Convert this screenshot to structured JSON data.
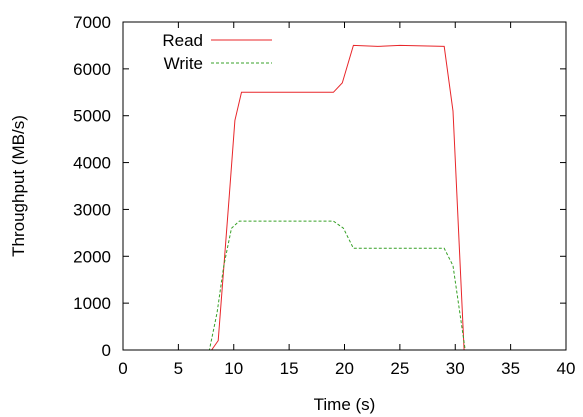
{
  "chart_data": {
    "type": "line",
    "title": "",
    "xlabel": "Time (s)",
    "ylabel": "Throughput (MB/s)",
    "xlim": [
      0,
      40
    ],
    "ylim": [
      0,
      7000
    ],
    "xticks": [
      0,
      5,
      10,
      15,
      20,
      25,
      30,
      35,
      40
    ],
    "yticks": [
      0,
      1000,
      2000,
      3000,
      4000,
      5000,
      6000,
      7000
    ],
    "grid": false,
    "legend_position": "top-left",
    "series": [
      {
        "name": "Read",
        "color": "#e8262a",
        "dash": "solid",
        "x": [
          0,
          8,
          8.6,
          9.6,
          10.1,
          10.7,
          15,
          19,
          19.8,
          20.8,
          23,
          25,
          29,
          29.8,
          30.8,
          31,
          40
        ],
        "y": [
          0,
          0,
          200,
          3300,
          4900,
          5500,
          5500,
          5500,
          5700,
          6500,
          6480,
          6500,
          6480,
          5100,
          0,
          0,
          0
        ]
      },
      {
        "name": "Write",
        "color": "#37a027",
        "dash": "dashed",
        "x": [
          0,
          7.8,
          8.5,
          9.1,
          9.8,
          10.5,
          15,
          19,
          19.9,
          20.8,
          25,
          29,
          29.8,
          30.9,
          31,
          40
        ],
        "y": [
          0,
          0,
          800,
          1800,
          2600,
          2750,
          2750,
          2750,
          2600,
          2170,
          2170,
          2170,
          1800,
          0,
          0,
          0
        ]
      }
    ]
  }
}
